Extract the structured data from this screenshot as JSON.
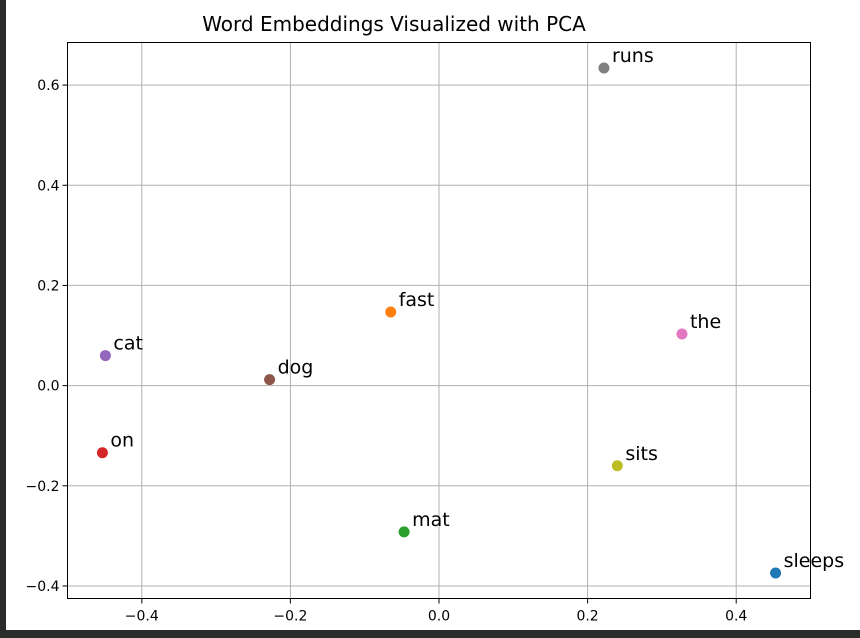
{
  "chart_data": {
    "type": "scatter",
    "title": "Word Embeddings Visualized with PCA",
    "xlabel": "",
    "ylabel": "",
    "xlim": [
      -0.5,
      0.5
    ],
    "ylim": [
      -0.425,
      0.685
    ],
    "xticks": [
      -0.4,
      -0.2,
      0.0,
      0.2,
      0.4
    ],
    "xtick_labels": [
      "−0.4",
      "−0.2",
      "0.0",
      "0.2",
      "0.4"
    ],
    "yticks": [
      -0.4,
      -0.2,
      0.0,
      0.2,
      0.4,
      0.6
    ],
    "ytick_labels": [
      "−0.4",
      "−0.2",
      "0.0",
      "0.2",
      "0.4",
      "0.6"
    ],
    "grid": true,
    "points": [
      {
        "label": "sleeps",
        "x": 0.453,
        "y": -0.374,
        "color": "#1f77b4"
      },
      {
        "label": "fast",
        "x": -0.065,
        "y": 0.147,
        "color": "#ff7f0e"
      },
      {
        "label": "mat",
        "x": -0.047,
        "y": -0.292,
        "color": "#2ca02c"
      },
      {
        "label": "on",
        "x": -0.453,
        "y": -0.134,
        "color": "#d62728"
      },
      {
        "label": "cat",
        "x": -0.449,
        "y": 0.06,
        "color": "#9467bd"
      },
      {
        "label": "dog",
        "x": -0.228,
        "y": 0.012,
        "color": "#8c564b"
      },
      {
        "label": "the",
        "x": 0.327,
        "y": 0.103,
        "color": "#e377c2"
      },
      {
        "label": "runs",
        "x": 0.222,
        "y": 0.634,
        "color": "#7f7f7f"
      },
      {
        "label": "sits",
        "x": 0.24,
        "y": -0.16,
        "color": "#bcbd22"
      }
    ]
  }
}
